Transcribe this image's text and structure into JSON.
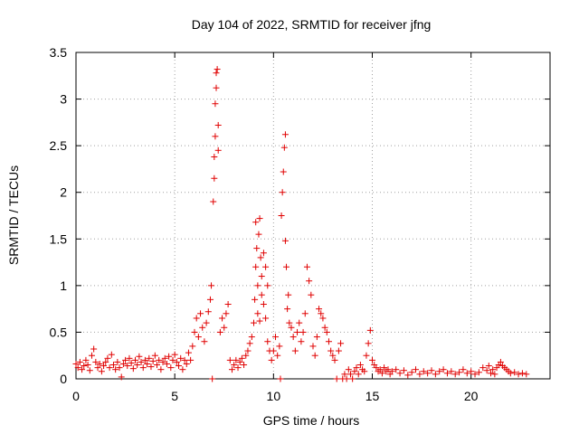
{
  "chart_data": {
    "type": "scatter",
    "title": "Day 104 of 2022, SRMTID for receiver jfng",
    "xlabel": "GPS time / hours",
    "ylabel": "SRMTID / TECUs",
    "xlim": [
      0,
      24
    ],
    "ylim": [
      0,
      3.5
    ],
    "xticks": [
      0,
      5,
      10,
      15,
      20
    ],
    "xtick_labels": [
      "0",
      "5",
      "10",
      "15",
      "20"
    ],
    "yticks": [
      0,
      0.5,
      1,
      1.5,
      2,
      2.5,
      3,
      3.5
    ],
    "ytick_labels": [
      "0",
      "0.5",
      "1",
      "1.5",
      "2",
      "2.5",
      "3",
      "3.5"
    ],
    "grid": true,
    "marker": "plus",
    "colors": {
      "points": "#e00000",
      "axis": "#000000",
      "grid": "#a0a0a0",
      "background": "#ffffff"
    },
    "series": [
      {
        "name": "SRMTID",
        "points": [
          [
            0.0,
            0.16
          ],
          [
            0.1,
            0.12
          ],
          [
            0.2,
            0.18
          ],
          [
            0.3,
            0.1
          ],
          [
            0.4,
            0.14
          ],
          [
            0.5,
            0.2
          ],
          [
            0.6,
            0.15
          ],
          [
            0.7,
            0.09
          ],
          [
            0.8,
            0.25
          ],
          [
            0.9,
            0.32
          ],
          [
            1.0,
            0.18
          ],
          [
            1.1,
            0.12
          ],
          [
            1.2,
            0.16
          ],
          [
            1.3,
            0.08
          ],
          [
            1.4,
            0.14
          ],
          [
            1.5,
            0.18
          ],
          [
            1.6,
            0.22
          ],
          [
            1.7,
            0.12
          ],
          [
            1.8,
            0.26
          ],
          [
            1.9,
            0.15
          ],
          [
            2.0,
            0.1
          ],
          [
            2.1,
            0.18
          ],
          [
            2.2,
            0.12
          ],
          [
            2.3,
            0.02
          ],
          [
            2.4,
            0.16
          ],
          [
            2.5,
            0.2
          ],
          [
            2.6,
            0.14
          ],
          [
            2.7,
            0.22
          ],
          [
            2.8,
            0.17
          ],
          [
            2.9,
            0.11
          ],
          [
            3.0,
            0.2
          ],
          [
            3.1,
            0.15
          ],
          [
            3.2,
            0.24
          ],
          [
            3.3,
            0.18
          ],
          [
            3.4,
            0.12
          ],
          [
            3.5,
            0.2
          ],
          [
            3.6,
            0.16
          ],
          [
            3.7,
            0.22
          ],
          [
            3.8,
            0.13
          ],
          [
            3.9,
            0.19
          ],
          [
            4.0,
            0.25
          ],
          [
            4.1,
            0.15
          ],
          [
            4.2,
            0.2
          ],
          [
            4.3,
            0.1
          ],
          [
            4.4,
            0.18
          ],
          [
            4.5,
            0.22
          ],
          [
            4.6,
            0.16
          ],
          [
            4.7,
            0.24
          ],
          [
            4.8,
            0.12
          ],
          [
            4.9,
            0.2
          ],
          [
            5.0,
            0.26
          ],
          [
            5.1,
            0.18
          ],
          [
            5.2,
            0.14
          ],
          [
            5.3,
            0.22
          ],
          [
            5.4,
            0.1
          ],
          [
            5.5,
            0.2
          ],
          [
            5.6,
            0.16
          ],
          [
            5.7,
            0.28
          ],
          [
            5.8,
            0.2
          ],
          [
            5.9,
            0.35
          ],
          [
            6.0,
            0.5
          ],
          [
            6.1,
            0.65
          ],
          [
            6.2,
            0.45
          ],
          [
            6.3,
            0.7
          ],
          [
            6.4,
            0.55
          ],
          [
            6.5,
            0.4
          ],
          [
            6.6,
            0.6
          ],
          [
            6.7,
            0.72
          ],
          [
            6.8,
            0.85
          ],
          [
            6.85,
            1.0
          ],
          [
            6.9,
            0.0
          ],
          [
            6.95,
            1.9
          ],
          [
            7.0,
            2.15
          ],
          [
            7.0,
            2.38
          ],
          [
            7.05,
            2.6
          ],
          [
            7.05,
            2.95
          ],
          [
            7.1,
            3.12
          ],
          [
            7.1,
            3.28
          ],
          [
            7.15,
            3.32
          ],
          [
            7.2,
            2.45
          ],
          [
            7.2,
            2.72
          ],
          [
            7.3,
            0.5
          ],
          [
            7.4,
            0.65
          ],
          [
            7.5,
            0.55
          ],
          [
            7.6,
            0.7
          ],
          [
            7.7,
            0.8
          ],
          [
            7.8,
            0.2
          ],
          [
            7.9,
            0.1
          ],
          [
            8.0,
            0.15
          ],
          [
            8.1,
            0.2
          ],
          [
            8.2,
            0.12
          ],
          [
            8.3,
            0.18
          ],
          [
            8.4,
            0.22
          ],
          [
            8.5,
            0.15
          ],
          [
            8.6,
            0.25
          ],
          [
            8.7,
            0.3
          ],
          [
            8.8,
            0.38
          ],
          [
            8.9,
            0.45
          ],
          [
            9.0,
            0.6
          ],
          [
            9.05,
            0.85
          ],
          [
            9.1,
            1.2
          ],
          [
            9.1,
            1.68
          ],
          [
            9.15,
            1.4
          ],
          [
            9.2,
            1.0
          ],
          [
            9.2,
            0.7
          ],
          [
            9.25,
            1.55
          ],
          [
            9.3,
            1.72
          ],
          [
            9.3,
            0.62
          ],
          [
            9.35,
            1.3
          ],
          [
            9.4,
            0.9
          ],
          [
            9.4,
            1.1
          ],
          [
            9.5,
            1.35
          ],
          [
            9.5,
            0.8
          ],
          [
            9.6,
            0.65
          ],
          [
            9.6,
            1.2
          ],
          [
            9.7,
            0.4
          ],
          [
            9.7,
            1.0
          ],
          [
            9.8,
            0.3
          ],
          [
            9.9,
            0.2
          ],
          [
            10.0,
            0.3
          ],
          [
            10.1,
            0.45
          ],
          [
            10.2,
            0.25
          ],
          [
            10.3,
            0.35
          ],
          [
            10.35,
            0.0
          ],
          [
            10.4,
            1.75
          ],
          [
            10.45,
            2.0
          ],
          [
            10.5,
            2.22
          ],
          [
            10.55,
            2.48
          ],
          [
            10.6,
            2.62
          ],
          [
            10.6,
            1.48
          ],
          [
            10.65,
            1.2
          ],
          [
            10.7,
            0.75
          ],
          [
            10.75,
            0.9
          ],
          [
            10.8,
            0.6
          ],
          [
            10.9,
            0.55
          ],
          [
            11.0,
            0.45
          ],
          [
            11.1,
            0.3
          ],
          [
            11.2,
            0.5
          ],
          [
            11.3,
            0.6
          ],
          [
            11.4,
            0.4
          ],
          [
            11.5,
            0.5
          ],
          [
            11.6,
            0.7
          ],
          [
            11.7,
            1.2
          ],
          [
            11.8,
            1.05
          ],
          [
            11.9,
            0.9
          ],
          [
            12.0,
            0.35
          ],
          [
            12.1,
            0.25
          ],
          [
            12.2,
            0.45
          ],
          [
            12.3,
            0.75
          ],
          [
            12.4,
            0.7
          ],
          [
            12.5,
            0.65
          ],
          [
            12.6,
            0.55
          ],
          [
            12.7,
            0.5
          ],
          [
            12.8,
            0.4
          ],
          [
            12.9,
            0.3
          ],
          [
            13.0,
            0.25
          ],
          [
            13.1,
            0.2
          ],
          [
            13.2,
            0.0
          ],
          [
            13.3,
            0.3
          ],
          [
            13.4,
            0.38
          ],
          [
            13.5,
            0.0
          ],
          [
            13.6,
            0.05
          ],
          [
            13.7,
            0.0
          ],
          [
            13.8,
            0.1
          ],
          [
            13.9,
            0.05
          ],
          [
            14.0,
            0.0
          ],
          [
            14.1,
            0.08
          ],
          [
            14.2,
            0.12
          ],
          [
            14.3,
            0.05
          ],
          [
            14.4,
            0.15
          ],
          [
            14.5,
            0.1
          ],
          [
            14.6,
            0.08
          ],
          [
            14.7,
            0.25
          ],
          [
            14.8,
            0.38
          ],
          [
            14.9,
            0.52
          ],
          [
            15.0,
            0.2
          ],
          [
            15.1,
            0.15
          ],
          [
            15.2,
            0.12
          ],
          [
            15.3,
            0.08
          ],
          [
            15.4,
            0.1
          ],
          [
            15.5,
            0.06
          ],
          [
            15.6,
            0.12
          ],
          [
            15.7,
            0.08
          ],
          [
            15.8,
            0.1
          ],
          [
            15.9,
            0.05
          ],
          [
            16.0,
            0.08
          ],
          [
            16.2,
            0.1
          ],
          [
            16.4,
            0.06
          ],
          [
            16.6,
            0.09
          ],
          [
            16.8,
            0.04
          ],
          [
            17.0,
            0.07
          ],
          [
            17.2,
            0.1
          ],
          [
            17.4,
            0.05
          ],
          [
            17.6,
            0.08
          ],
          [
            17.8,
            0.06
          ],
          [
            18.0,
            0.09
          ],
          [
            18.2,
            0.05
          ],
          [
            18.4,
            0.08
          ],
          [
            18.6,
            0.1
          ],
          [
            18.8,
            0.06
          ],
          [
            19.0,
            0.08
          ],
          [
            19.2,
            0.05
          ],
          [
            19.4,
            0.07
          ],
          [
            19.6,
            0.1
          ],
          [
            19.8,
            0.06
          ],
          [
            20.0,
            0.08
          ],
          [
            20.2,
            0.05
          ],
          [
            20.4,
            0.07
          ],
          [
            20.6,
            0.12
          ],
          [
            20.8,
            0.09
          ],
          [
            20.9,
            0.14
          ],
          [
            21.0,
            0.06
          ],
          [
            21.1,
            0.1
          ],
          [
            21.2,
            0.05
          ],
          [
            21.3,
            0.12
          ],
          [
            21.4,
            0.15
          ],
          [
            21.5,
            0.18
          ],
          [
            21.6,
            0.14
          ],
          [
            21.7,
            0.12
          ],
          [
            21.8,
            0.1
          ],
          [
            21.9,
            0.08
          ],
          [
            22.0,
            0.06
          ],
          [
            22.2,
            0.07
          ],
          [
            22.4,
            0.05
          ],
          [
            22.6,
            0.06
          ],
          [
            22.8,
            0.05
          ]
        ]
      }
    ]
  }
}
